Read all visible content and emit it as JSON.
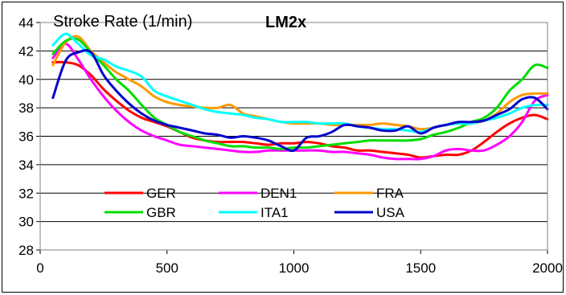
{
  "chart_data": {
    "type": "line",
    "title": "Stroke Rate (1/min)",
    "subtitle": "LM2x",
    "xlabel": "",
    "ylabel": "",
    "xlim": [
      0,
      2000
    ],
    "ylim": [
      28,
      44
    ],
    "x_ticks": [
      "0",
      "500",
      "1000",
      "1500",
      "2000"
    ],
    "y_ticks": [
      "28",
      "30",
      "32",
      "34",
      "36",
      "38",
      "40",
      "42",
      "44"
    ],
    "grid": "horizontal",
    "legend_position": "lower-center",
    "series": [
      {
        "name": "GER",
        "color": "#ff0000",
        "points": [
          [
            50,
            41.2
          ],
          [
            100,
            41.2
          ],
          [
            150,
            41.0
          ],
          [
            200,
            40.3
          ],
          [
            250,
            39.3
          ],
          [
            300,
            38.5
          ],
          [
            350,
            37.8
          ],
          [
            400,
            37.3
          ],
          [
            450,
            37.0
          ],
          [
            500,
            36.7
          ],
          [
            550,
            36.3
          ],
          [
            600,
            35.9
          ],
          [
            650,
            35.7
          ],
          [
            700,
            35.6
          ],
          [
            750,
            35.6
          ],
          [
            800,
            35.6
          ],
          [
            850,
            35.5
          ],
          [
            900,
            35.4
          ],
          [
            950,
            35.5
          ],
          [
            1000,
            35.5
          ],
          [
            1050,
            35.6
          ],
          [
            1100,
            35.5
          ],
          [
            1150,
            35.3
          ],
          [
            1200,
            35.2
          ],
          [
            1250,
            35.0
          ],
          [
            1300,
            35.0
          ],
          [
            1350,
            34.9
          ],
          [
            1400,
            34.8
          ],
          [
            1450,
            34.7
          ],
          [
            1500,
            34.5
          ],
          [
            1550,
            34.6
          ],
          [
            1600,
            34.7
          ],
          [
            1650,
            34.7
          ],
          [
            1700,
            35.0
          ],
          [
            1750,
            35.6
          ],
          [
            1800,
            36.3
          ],
          [
            1850,
            36.9
          ],
          [
            1900,
            37.3
          ],
          [
            1950,
            37.5
          ],
          [
            2000,
            37.2
          ]
        ]
      },
      {
        "name": "DEN1",
        "color": "#ff00ff",
        "points": [
          [
            50,
            41.5
          ],
          [
            100,
            42.5
          ],
          [
            150,
            41.4
          ],
          [
            200,
            40.0
          ],
          [
            250,
            38.8
          ],
          [
            300,
            37.8
          ],
          [
            350,
            37.0
          ],
          [
            400,
            36.4
          ],
          [
            450,
            36.0
          ],
          [
            500,
            35.7
          ],
          [
            550,
            35.4
          ],
          [
            600,
            35.3
          ],
          [
            650,
            35.2
          ],
          [
            700,
            35.1
          ],
          [
            750,
            35.0
          ],
          [
            800,
            34.9
          ],
          [
            850,
            34.9
          ],
          [
            900,
            35.0
          ],
          [
            950,
            35.0
          ],
          [
            1000,
            35.0
          ],
          [
            1050,
            35.0
          ],
          [
            1100,
            35.0
          ],
          [
            1150,
            34.9
          ],
          [
            1200,
            34.9
          ],
          [
            1250,
            34.8
          ],
          [
            1300,
            34.7
          ],
          [
            1350,
            34.5
          ],
          [
            1400,
            34.4
          ],
          [
            1450,
            34.4
          ],
          [
            1500,
            34.4
          ],
          [
            1550,
            34.6
          ],
          [
            1600,
            35.0
          ],
          [
            1650,
            35.1
          ],
          [
            1700,
            35.0
          ],
          [
            1750,
            35.0
          ],
          [
            1800,
            35.4
          ],
          [
            1850,
            36.0
          ],
          [
            1900,
            37.0
          ],
          [
            1950,
            38.5
          ],
          [
            2000,
            38.9
          ]
        ]
      },
      {
        "name": "FRA",
        "color": "#ff9900",
        "points": [
          [
            50,
            41.0
          ],
          [
            100,
            42.6
          ],
          [
            150,
            43.0
          ],
          [
            200,
            42.0
          ],
          [
            250,
            41.2
          ],
          [
            300,
            40.5
          ],
          [
            350,
            40.0
          ],
          [
            400,
            39.5
          ],
          [
            450,
            38.8
          ],
          [
            500,
            38.4
          ],
          [
            550,
            38.2
          ],
          [
            600,
            38.1
          ],
          [
            650,
            38.0
          ],
          [
            700,
            38.0
          ],
          [
            750,
            38.2
          ],
          [
            800,
            37.6
          ],
          [
            850,
            37.4
          ],
          [
            900,
            37.2
          ],
          [
            950,
            37.0
          ],
          [
            1000,
            36.9
          ],
          [
            1050,
            36.9
          ],
          [
            1100,
            36.9
          ],
          [
            1150,
            36.8
          ],
          [
            1200,
            36.8
          ],
          [
            1250,
            36.8
          ],
          [
            1300,
            36.8
          ],
          [
            1350,
            36.9
          ],
          [
            1400,
            36.8
          ],
          [
            1450,
            36.7
          ],
          [
            1500,
            36.5
          ],
          [
            1550,
            36.6
          ],
          [
            1600,
            36.8
          ],
          [
            1650,
            36.9
          ],
          [
            1700,
            36.9
          ],
          [
            1750,
            37.1
          ],
          [
            1800,
            37.6
          ],
          [
            1850,
            38.4
          ],
          [
            1900,
            38.9
          ],
          [
            1950,
            39.0
          ],
          [
            2000,
            39.0
          ]
        ]
      },
      {
        "name": "GBR",
        "color": "#00dd00",
        "points": [
          [
            50,
            41.8
          ],
          [
            100,
            42.7
          ],
          [
            150,
            42.8
          ],
          [
            200,
            41.9
          ],
          [
            250,
            41.0
          ],
          [
            300,
            40.0
          ],
          [
            350,
            39.2
          ],
          [
            400,
            38.2
          ],
          [
            450,
            37.3
          ],
          [
            500,
            36.8
          ],
          [
            550,
            36.3
          ],
          [
            600,
            36.0
          ],
          [
            650,
            35.7
          ],
          [
            700,
            35.5
          ],
          [
            750,
            35.3
          ],
          [
            800,
            35.3
          ],
          [
            850,
            35.2
          ],
          [
            900,
            35.2
          ],
          [
            950,
            35.1
          ],
          [
            1000,
            35.2
          ],
          [
            1050,
            35.2
          ],
          [
            1100,
            35.3
          ],
          [
            1150,
            35.4
          ],
          [
            1200,
            35.5
          ],
          [
            1250,
            35.6
          ],
          [
            1300,
            35.7
          ],
          [
            1350,
            35.7
          ],
          [
            1400,
            35.7
          ],
          [
            1450,
            35.7
          ],
          [
            1500,
            35.8
          ],
          [
            1550,
            36.1
          ],
          [
            1600,
            36.3
          ],
          [
            1650,
            36.6
          ],
          [
            1700,
            37.0
          ],
          [
            1750,
            37.3
          ],
          [
            1800,
            38.0
          ],
          [
            1850,
            39.2
          ],
          [
            1900,
            40.0
          ],
          [
            1950,
            41.0
          ],
          [
            2000,
            40.8
          ]
        ]
      },
      {
        "name": "ITA1",
        "color": "#00ffff",
        "points": [
          [
            50,
            42.4
          ],
          [
            100,
            43.2
          ],
          [
            150,
            42.5
          ],
          [
            200,
            41.7
          ],
          [
            250,
            41.4
          ],
          [
            300,
            40.9
          ],
          [
            350,
            40.6
          ],
          [
            400,
            40.2
          ],
          [
            450,
            39.2
          ],
          [
            500,
            38.8
          ],
          [
            550,
            38.5
          ],
          [
            600,
            38.2
          ],
          [
            650,
            37.9
          ],
          [
            700,
            37.7
          ],
          [
            750,
            37.6
          ],
          [
            800,
            37.5
          ],
          [
            850,
            37.3
          ],
          [
            900,
            37.2
          ],
          [
            950,
            37.0
          ],
          [
            1000,
            37.0
          ],
          [
            1050,
            37.0
          ],
          [
            1100,
            36.9
          ],
          [
            1150,
            36.9
          ],
          [
            1200,
            36.9
          ],
          [
            1250,
            36.7
          ],
          [
            1300,
            36.6
          ],
          [
            1350,
            36.5
          ],
          [
            1400,
            36.5
          ],
          [
            1450,
            36.4
          ],
          [
            1500,
            36.3
          ],
          [
            1550,
            36.6
          ],
          [
            1600,
            36.8
          ],
          [
            1650,
            36.9
          ],
          [
            1700,
            36.9
          ],
          [
            1750,
            37.1
          ],
          [
            1800,
            37.3
          ],
          [
            1850,
            37.6
          ],
          [
            1900,
            38.0
          ],
          [
            1950,
            38.2
          ],
          [
            2000,
            38.2
          ]
        ]
      },
      {
        "name": "USA",
        "color": "#0000cc",
        "points": [
          [
            50,
            38.7
          ],
          [
            100,
            41.3
          ],
          [
            150,
            41.9
          ],
          [
            200,
            41.9
          ],
          [
            250,
            40.3
          ],
          [
            300,
            39.2
          ],
          [
            350,
            38.3
          ],
          [
            400,
            37.6
          ],
          [
            450,
            37.1
          ],
          [
            500,
            36.8
          ],
          [
            550,
            36.6
          ],
          [
            600,
            36.4
          ],
          [
            650,
            36.2
          ],
          [
            700,
            36.1
          ],
          [
            750,
            35.9
          ],
          [
            800,
            36.0
          ],
          [
            850,
            35.9
          ],
          [
            900,
            35.7
          ],
          [
            950,
            35.3
          ],
          [
            1000,
            35.0
          ],
          [
            1050,
            35.9
          ],
          [
            1100,
            36.0
          ],
          [
            1150,
            36.3
          ],
          [
            1200,
            36.8
          ],
          [
            1250,
            36.7
          ],
          [
            1300,
            36.6
          ],
          [
            1350,
            36.4
          ],
          [
            1400,
            36.4
          ],
          [
            1450,
            36.7
          ],
          [
            1500,
            36.2
          ],
          [
            1550,
            36.6
          ],
          [
            1600,
            36.8
          ],
          [
            1650,
            37.0
          ],
          [
            1700,
            37.0
          ],
          [
            1750,
            37.1
          ],
          [
            1800,
            37.5
          ],
          [
            1850,
            37.9
          ],
          [
            1900,
            38.6
          ],
          [
            1950,
            38.7
          ],
          [
            2000,
            37.9
          ]
        ]
      }
    ]
  }
}
